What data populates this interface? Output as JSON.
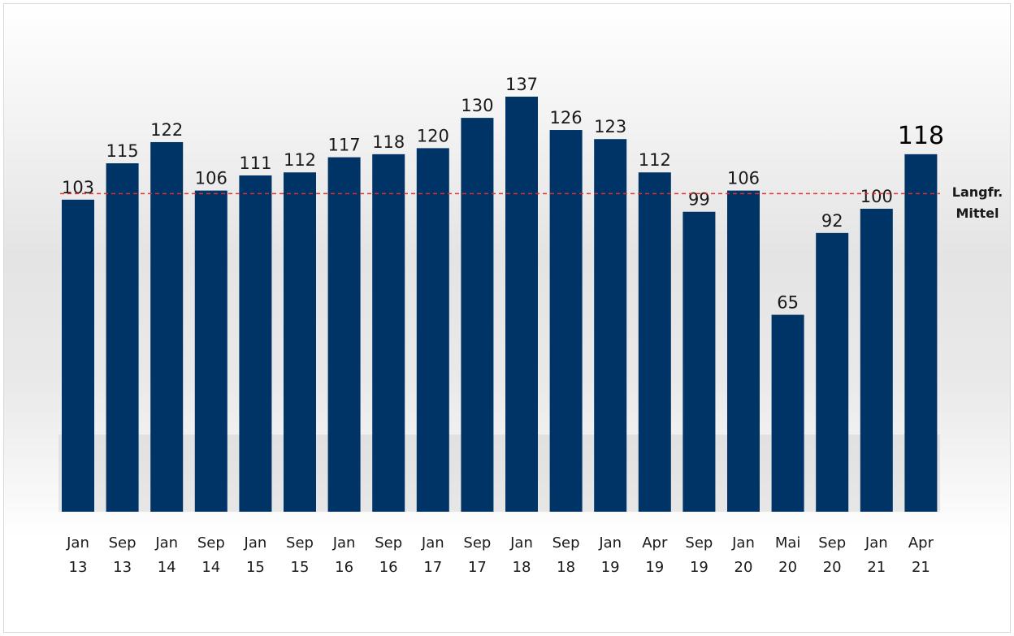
{
  "chart_data": {
    "type": "bar",
    "categories": [
      [
        "Jan",
        "13"
      ],
      [
        "Sep",
        "13"
      ],
      [
        "Jan",
        "14"
      ],
      [
        "Sep",
        "14"
      ],
      [
        "Jan",
        "15"
      ],
      [
        "Sep",
        "15"
      ],
      [
        "Jan",
        "16"
      ],
      [
        "Sep",
        "16"
      ],
      [
        "Jan",
        "17"
      ],
      [
        "Sep",
        "17"
      ],
      [
        "Jan",
        "18"
      ],
      [
        "Sep",
        "18"
      ],
      [
        "Jan",
        "19"
      ],
      [
        "Apr",
        "19"
      ],
      [
        "Sep",
        "19"
      ],
      [
        "Jan",
        "20"
      ],
      [
        "Mai",
        "20"
      ],
      [
        "Sep",
        "20"
      ],
      [
        "Jan",
        "21"
      ],
      [
        "Apr",
        "21"
      ]
    ],
    "values": [
      103,
      115,
      122,
      106,
      111,
      112,
      117,
      118,
      120,
      130,
      137,
      126,
      123,
      112,
      99,
      106,
      65,
      92,
      100,
      118
    ],
    "ylim": [
      0,
      155
    ],
    "bar_color": "#003366",
    "reference_line": {
      "value": 105,
      "label_line1": "Langfr.",
      "label_line2": "Mittel",
      "color": "#e03030",
      "style": "dashed"
    },
    "title": "",
    "xlabel": "",
    "ylabel": "",
    "grid": false,
    "legend": "none"
  }
}
